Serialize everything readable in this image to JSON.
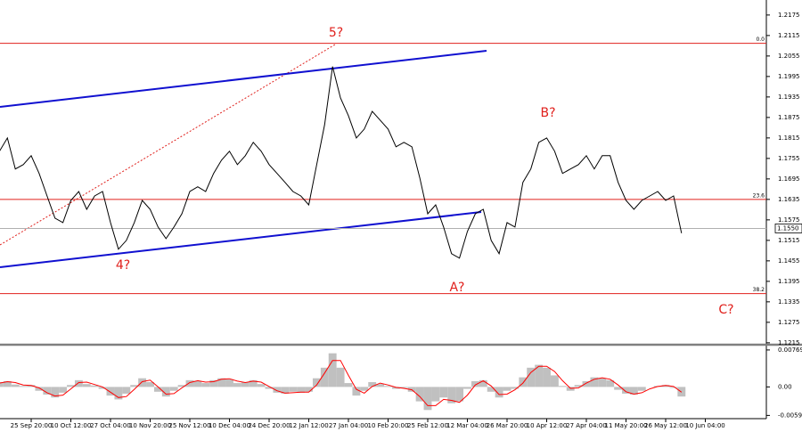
{
  "chart_data": [
    {
      "type": "line",
      "categories": [
        null,
        null,
        null,
        null,
        "25 Sep 20:00",
        null,
        null,
        null,
        null,
        "10 Oct 12:00",
        null,
        null,
        null,
        null,
        "27 Oct 04:00",
        null,
        null,
        null,
        null,
        "10 Nov 20:00",
        null,
        null,
        null,
        null,
        "25 Nov 12:00",
        null,
        null,
        null,
        null,
        "10 Dec 04:00",
        null,
        null,
        null,
        null,
        "24 Dec 20:00",
        null,
        null,
        null,
        null,
        "12 Jan 12:00",
        null,
        null,
        null,
        null,
        "27 Jan 04:00",
        null,
        null,
        null,
        null,
        "10 Feb 20:00",
        null,
        null,
        null,
        null,
        "25 Feb 12:00",
        null,
        null,
        null,
        null,
        "12 Mar 04:00",
        null,
        null,
        null,
        null,
        "26 Mar 20:00",
        null,
        null,
        null,
        null,
        "10 Apr 12:00",
        null,
        null,
        null,
        null,
        "27 Apr 04:00",
        null,
        null,
        null,
        null,
        "11 May 20:00",
        null,
        null,
        null,
        null,
        "26 May 12:00",
        null,
        null,
        null,
        null,
        "10 Jun 04:00"
      ],
      "series": [
        {
          "color": "#000000",
          "values": [
            1.1776,
            1.1815,
            1.1724,
            1.1737,
            1.1763,
            1.1711,
            1.1645,
            1.158,
            1.1567,
            1.1632,
            1.1658,
            1.1606,
            1.1645,
            1.1658,
            1.1567,
            1.1489,
            1.1515,
            1.1567,
            1.1632,
            1.1606,
            1.1554,
            1.152,
            1.1554,
            1.1593,
            1.1658,
            1.1672,
            1.1658,
            1.1711,
            1.175,
            1.1776,
            1.1737,
            1.1763,
            1.1802,
            1.1776,
            1.1737,
            1.1711,
            1.1685,
            1.1658,
            1.1645,
            1.1619,
            1.1737,
            1.1854,
            1.2024,
            1.1932,
            1.188,
            1.1815,
            1.1841,
            1.1893,
            1.1867,
            1.1841,
            1.1789,
            1.1802,
            1.1789,
            1.1698,
            1.1593,
            1.1619,
            1.1554,
            1.1476,
            1.1463,
            1.1541,
            1.1593,
            1.1606,
            1.1515,
            1.1476,
            1.1567,
            1.1554,
            1.1685,
            1.1724,
            1.1802,
            1.1815,
            1.1776,
            1.1711,
            1.1724,
            1.1737,
            1.1763,
            1.1724,
            1.1763,
            1.1763,
            1.1685,
            1.1632,
            1.1606,
            1.1632,
            1.1645,
            1.1658,
            1.1632,
            1.1645,
            1.1536,
            null,
            null,
            null
          ]
        }
      ],
      "ylim": [
        1.1212,
        1.2219
      ],
      "yticks": [
        1.2175,
        1.2115,
        1.2055,
        1.1995,
        1.1935,
        1.1875,
        1.1815,
        1.1755,
        1.1695,
        1.1635,
        1.1575,
        1.1515,
        1.1455,
        1.1395,
        1.1335,
        1.1275,
        1.1215
      ],
      "levels": [
        {
          "value": 1.2092,
          "label": "0.0"
        },
        {
          "value": 1.1635,
          "label": "23.6"
        },
        {
          "value": 1.1359,
          "label": "38.2"
        }
      ],
      "level_color": "#e0201c",
      "current_price": {
        "value": 1.155,
        "label": "1.1550"
      },
      "annotations": [
        "5?",
        "B?",
        "4?",
        "A?",
        "C?"
      ]
    },
    {
      "type": "bar",
      "series": [
        {
          "color": "#c0c0c0",
          "values": [
            0.001,
            0.0012,
            0.0005,
            0.0002,
            0.0004,
            -0.0008,
            -0.0016,
            -0.0022,
            -0.0012,
            0.0004,
            0.0014,
            0.0006,
            0.0003,
            -0.0004,
            -0.0018,
            -0.0026,
            -0.0014,
            0.0004,
            0.0018,
            0.001,
            -0.001,
            -0.002,
            -0.0008,
            0.0004,
            0.0014,
            0.0012,
            0.0008,
            0.0014,
            0.0018,
            0.0016,
            0.0008,
            0.001,
            0.0014,
            0.0006,
            -0.0004,
            -0.0012,
            -0.0014,
            -0.001,
            -0.0012,
            -0.001,
            0.0018,
            0.004,
            0.007,
            0.004,
            0.0008,
            -0.0018,
            -0.0008,
            0.001,
            0.0006,
            0.0002,
            -0.0004,
            -0.0002,
            -0.001,
            -0.003,
            -0.0048,
            -0.003,
            -0.0022,
            -0.0034,
            -0.003,
            -0.0004,
            0.0012,
            0.0014,
            -0.001,
            -0.0022,
            -0.0008,
            -0.0004,
            0.002,
            0.004,
            0.0046,
            0.004,
            0.0024,
            0.0002,
            -0.0008,
            0.0004,
            0.0012,
            0.002,
            0.0018,
            0.0014,
            -0.0006,
            -0.0014,
            -0.0016,
            -0.0008,
            0,
            0.0002,
            0.0004,
            -0.0002,
            -0.002,
            null,
            null,
            null
          ]
        },
        {
          "type": "line",
          "color": "#ff0000",
          "values": [
            0.0008,
            0.0011,
            0.0009,
            0.0004,
            0.0003,
            -0.0002,
            -0.0012,
            -0.0019,
            -0.0017,
            -0.0004,
            0.0009,
            0.001,
            0.0005,
            0,
            -0.0011,
            -0.0022,
            -0.002,
            -0.0005,
            0.0011,
            0.0014,
            0,
            -0.0015,
            -0.0014,
            -0.0002,
            0.0009,
            0.0013,
            0.001,
            0.0011,
            0.0016,
            0.0017,
            0.0012,
            0.0009,
            0.0012,
            0.001,
            0.0001,
            -0.0008,
            -0.0013,
            -0.0012,
            -0.0011,
            -0.0011,
            0.0004,
            0.0029,
            0.0055,
            0.0055,
            0.0024,
            -0.0005,
            -0.0013,
            0.0001,
            0.0008,
            0.0004,
            -0.0001,
            -0.0003,
            -0.0006,
            -0.002,
            -0.0039,
            -0.0039,
            -0.0026,
            -0.0028,
            -0.0032,
            -0.0017,
            0.0004,
            0.0013,
            0.0002,
            -0.0016,
            -0.0015,
            -0.0006,
            0.0008,
            0.003,
            0.0043,
            0.0043,
            0.0032,
            0.0013,
            -0.0003,
            -0.0002,
            0.0008,
            0.0016,
            0.0019,
            0.0016,
            0.0004,
            -0.001,
            -0.0015,
            -0.0012,
            -0.0004,
            0.0001,
            0.0003,
            0.0001,
            -0.0011,
            null,
            null,
            null
          ]
        }
      ],
      "ylim": [
        -0.0066,
        0.0086
      ],
      "yticks": [
        0.00769,
        {
          "value": 0,
          "label": "0.00"
        },
        -0.00593
      ]
    }
  ]
}
